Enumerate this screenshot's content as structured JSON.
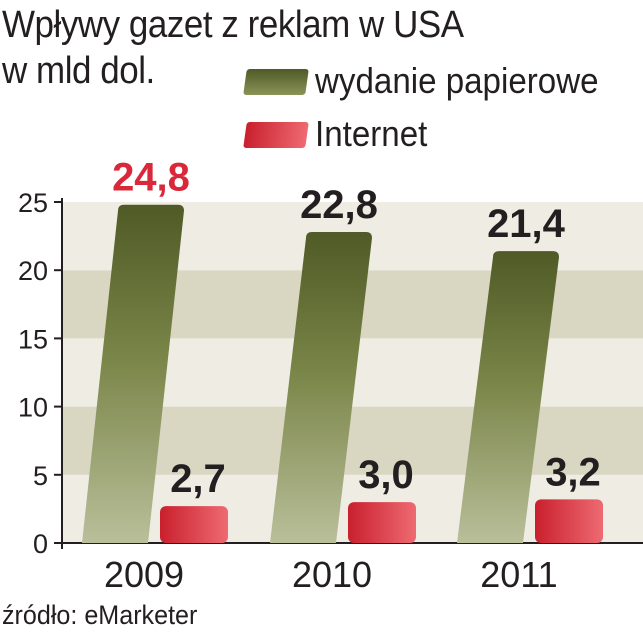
{
  "title": {
    "line1": "Wpływy gazet z reklam w USA",
    "line2": "w mld dol."
  },
  "legend": [
    {
      "label": "wydanie papierowe",
      "color": "#6b7a3a"
    },
    {
      "label": "Internet",
      "color": "#e0353f"
    }
  ],
  "source": "źródło: eMarketer",
  "colors": {
    "paper": "#6b7a3a",
    "internet": "#e0353f",
    "label_highlight": "#d8283a",
    "label_default": "#231f20",
    "band_light": "#d9d6c2",
    "band_dark": "#efede3"
  },
  "chart_data": {
    "type": "bar",
    "categories": [
      "2009",
      "2010",
      "2011"
    ],
    "series": [
      {
        "name": "wydanie papierowe",
        "values": [
          24.8,
          22.8,
          21.4
        ],
        "labels": [
          "24,8",
          "22,8",
          "21,4"
        ]
      },
      {
        "name": "Internet",
        "values": [
          2.7,
          3.0,
          3.2
        ],
        "labels": [
          "2,7",
          "3,0",
          "3,2"
        ]
      }
    ],
    "highlighted_label": "24,8",
    "yticks": [
      "0",
      "5",
      "10",
      "15",
      "20",
      "25"
    ],
    "ylim": [
      0,
      25
    ],
    "grid": true
  }
}
